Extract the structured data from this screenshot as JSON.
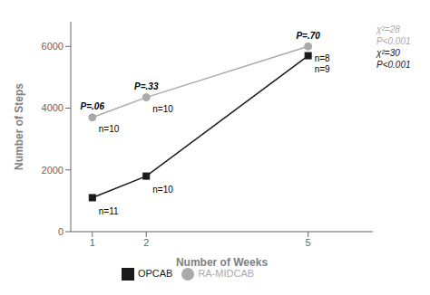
{
  "chart_data": {
    "type": "line",
    "x": [
      1,
      2,
      5
    ],
    "xlabel": "Number of Weeks",
    "ylabel": "Number of Steps",
    "xlim": [
      0.6,
      6.2
    ],
    "xticks": [
      1,
      2,
      5
    ],
    "ylim": [
      0,
      6800
    ],
    "yticks": [
      0,
      2000,
      4000,
      6000
    ],
    "grid": false,
    "legend": "bottom",
    "series": [
      {
        "name": "RA-MIDCAB",
        "color": "#aaaaaa",
        "marker": "circle",
        "values": [
          3700,
          4350,
          6000
        ]
      },
      {
        "name": "OPCAB",
        "color": "#1a1a1a",
        "marker": "square",
        "values": [
          1100,
          1800,
          5700
        ]
      }
    ],
    "annotations": [
      {
        "text": "P=.06",
        "series": "RA-MIDCAB",
        "x": 1
      },
      {
        "text": "n=10",
        "series": "RA-MIDCAB",
        "x": 1
      },
      {
        "text": "P=.33",
        "series": "RA-MIDCAB",
        "x": 2
      },
      {
        "text": "n=10",
        "series": "RA-MIDCAB",
        "x": 2
      },
      {
        "text": "P=.70",
        "series": "RA-MIDCAB",
        "x": 5
      },
      {
        "text": "n=8",
        "series": "RA-MIDCAB",
        "x": 5
      },
      {
        "text": "n=11",
        "series": "OPCAB",
        "x": 1
      },
      {
        "text": "n=10",
        "series": "OPCAB",
        "x": 2
      },
      {
        "text": "n=9",
        "series": "OPCAB",
        "x": 5
      },
      {
        "text": "χ²=28",
        "series": "RA-MIDCAB"
      },
      {
        "text": "P<0.001",
        "series": "RA-MIDCAB"
      },
      {
        "text": "χ²=30",
        "series": "OPCAB"
      },
      {
        "text": "P<0.001",
        "series": "OPCAB"
      }
    ]
  }
}
